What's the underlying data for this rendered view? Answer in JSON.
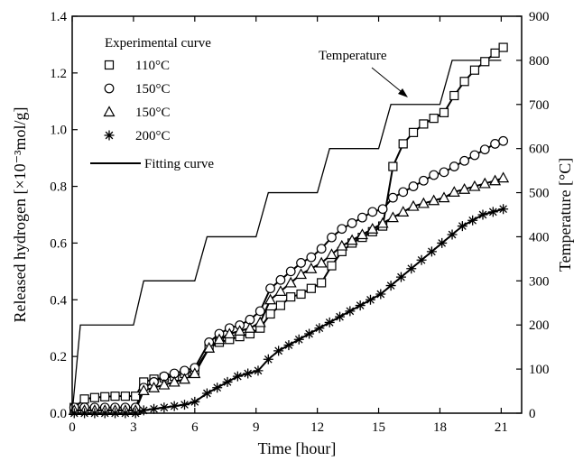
{
  "chart_data": {
    "type": "line",
    "xlabel": "Time [hour]",
    "ylabel": "Released hydrogen [×10⁻³mol/g]",
    "y2label": "Temperature [°C]",
    "xlim": [
      0,
      22
    ],
    "ylim": [
      0,
      1.4
    ],
    "y2lim": [
      0,
      900
    ],
    "xticks": [
      "0",
      "3",
      "6",
      "9",
      "12",
      "15",
      "18",
      "21"
    ],
    "yticks": [
      "0.0",
      "0.2",
      "0.4",
      "0.6",
      "0.8",
      "1.0",
      "1.2",
      "1.4"
    ],
    "y2ticks": [
      "0",
      "100",
      "200",
      "300",
      "400",
      "500",
      "600",
      "700",
      "800",
      "900"
    ],
    "grid": false,
    "legend": {
      "position": "top-left",
      "title": "Experimental curve",
      "fit_label": "Fitting curve"
    },
    "annotation": {
      "text": "Temperature"
    },
    "series": [
      {
        "name": "110°C",
        "marker": "square",
        "points": [
          [
            0.1,
            0.02
          ],
          [
            0.6,
            0.05
          ],
          [
            1.1,
            0.055
          ],
          [
            1.6,
            0.058
          ],
          [
            2.1,
            0.06
          ],
          [
            2.6,
            0.06
          ],
          [
            3.1,
            0.06
          ],
          [
            3.5,
            0.11
          ],
          [
            4.0,
            0.12
          ],
          [
            4.5,
            0.125
          ],
          [
            5.0,
            0.13
          ],
          [
            5.5,
            0.14
          ],
          [
            6.0,
            0.15
          ],
          [
            6.7,
            0.23
          ],
          [
            7.2,
            0.25
          ],
          [
            7.7,
            0.26
          ],
          [
            8.2,
            0.27
          ],
          [
            8.7,
            0.28
          ],
          [
            9.2,
            0.3
          ],
          [
            9.7,
            0.35
          ],
          [
            10.2,
            0.38
          ],
          [
            10.7,
            0.41
          ],
          [
            11.2,
            0.42
          ],
          [
            11.7,
            0.44
          ],
          [
            12.2,
            0.46
          ],
          [
            12.7,
            0.52
          ],
          [
            13.2,
            0.57
          ],
          [
            13.7,
            0.6
          ],
          [
            14.2,
            0.62
          ],
          [
            14.7,
            0.64
          ],
          [
            15.2,
            0.66
          ],
          [
            15.7,
            0.87
          ],
          [
            16.2,
            0.95
          ],
          [
            16.7,
            0.99
          ],
          [
            17.2,
            1.02
          ],
          [
            17.7,
            1.04
          ],
          [
            18.2,
            1.06
          ],
          [
            18.7,
            1.12
          ],
          [
            19.2,
            1.17
          ],
          [
            19.7,
            1.21
          ],
          [
            20.2,
            1.24
          ],
          [
            20.7,
            1.27
          ],
          [
            21.1,
            1.29
          ]
        ]
      },
      {
        "name": "150°C",
        "marker": "circle",
        "points": [
          [
            0.1,
            0.02
          ],
          [
            0.6,
            0.02
          ],
          [
            1.1,
            0.02
          ],
          [
            1.6,
            0.02
          ],
          [
            2.1,
            0.02
          ],
          [
            2.6,
            0.02
          ],
          [
            3.1,
            0.02
          ],
          [
            3.5,
            0.09
          ],
          [
            4.0,
            0.11
          ],
          [
            4.5,
            0.13
          ],
          [
            5.0,
            0.14
          ],
          [
            5.5,
            0.15
          ],
          [
            6.0,
            0.16
          ],
          [
            6.7,
            0.25
          ],
          [
            7.2,
            0.28
          ],
          [
            7.7,
            0.3
          ],
          [
            8.2,
            0.31
          ],
          [
            8.7,
            0.33
          ],
          [
            9.2,
            0.36
          ],
          [
            9.7,
            0.44
          ],
          [
            10.2,
            0.47
          ],
          [
            10.7,
            0.5
          ],
          [
            11.2,
            0.53
          ],
          [
            11.7,
            0.55
          ],
          [
            12.2,
            0.58
          ],
          [
            12.7,
            0.62
          ],
          [
            13.2,
            0.65
          ],
          [
            13.7,
            0.67
          ],
          [
            14.2,
            0.69
          ],
          [
            14.7,
            0.71
          ],
          [
            15.2,
            0.72
          ],
          [
            15.7,
            0.76
          ],
          [
            16.2,
            0.78
          ],
          [
            16.7,
            0.8
          ],
          [
            17.2,
            0.82
          ],
          [
            17.7,
            0.84
          ],
          [
            18.2,
            0.85
          ],
          [
            18.7,
            0.87
          ],
          [
            19.2,
            0.89
          ],
          [
            19.7,
            0.91
          ],
          [
            20.2,
            0.93
          ],
          [
            20.7,
            0.95
          ],
          [
            21.1,
            0.96
          ]
        ]
      },
      {
        "name": "150°C",
        "marker": "triangle",
        "points": [
          [
            0.1,
            0.01
          ],
          [
            0.6,
            0.01
          ],
          [
            1.1,
            0.01
          ],
          [
            1.6,
            0.01
          ],
          [
            2.1,
            0.01
          ],
          [
            2.6,
            0.01
          ],
          [
            3.1,
            0.01
          ],
          [
            3.5,
            0.08
          ],
          [
            4.0,
            0.09
          ],
          [
            4.5,
            0.1
          ],
          [
            5.0,
            0.11
          ],
          [
            5.5,
            0.12
          ],
          [
            6.0,
            0.14
          ],
          [
            6.7,
            0.23
          ],
          [
            7.2,
            0.26
          ],
          [
            7.7,
            0.28
          ],
          [
            8.2,
            0.29
          ],
          [
            8.7,
            0.3
          ],
          [
            9.2,
            0.32
          ],
          [
            9.7,
            0.4
          ],
          [
            10.2,
            0.43
          ],
          [
            10.7,
            0.46
          ],
          [
            11.2,
            0.49
          ],
          [
            11.7,
            0.51
          ],
          [
            12.2,
            0.53
          ],
          [
            12.7,
            0.56
          ],
          [
            13.2,
            0.59
          ],
          [
            13.7,
            0.61
          ],
          [
            14.2,
            0.63
          ],
          [
            14.7,
            0.65
          ],
          [
            15.2,
            0.67
          ],
          [
            15.7,
            0.69
          ],
          [
            16.2,
            0.71
          ],
          [
            16.7,
            0.73
          ],
          [
            17.2,
            0.74
          ],
          [
            17.7,
            0.75
          ],
          [
            18.2,
            0.76
          ],
          [
            18.7,
            0.78
          ],
          [
            19.2,
            0.79
          ],
          [
            19.7,
            0.8
          ],
          [
            20.2,
            0.81
          ],
          [
            20.7,
            0.82
          ],
          [
            21.1,
            0.83
          ]
        ]
      },
      {
        "name": "200°C",
        "marker": "star",
        "points": [
          [
            0.1,
            0.0
          ],
          [
            0.6,
            0.0
          ],
          [
            1.1,
            0.0
          ],
          [
            1.6,
            0.0
          ],
          [
            2.1,
            0.0
          ],
          [
            2.6,
            0.0
          ],
          [
            3.1,
            0.0
          ],
          [
            3.5,
            0.01
          ],
          [
            4.0,
            0.015
          ],
          [
            4.5,
            0.02
          ],
          [
            5.0,
            0.025
          ],
          [
            5.5,
            0.03
          ],
          [
            6.0,
            0.04
          ],
          [
            6.6,
            0.07
          ],
          [
            7.1,
            0.09
          ],
          [
            7.6,
            0.11
          ],
          [
            8.1,
            0.13
          ],
          [
            8.6,
            0.14
          ],
          [
            9.1,
            0.15
          ],
          [
            9.6,
            0.19
          ],
          [
            10.1,
            0.22
          ],
          [
            10.6,
            0.24
          ],
          [
            11.1,
            0.26
          ],
          [
            11.6,
            0.28
          ],
          [
            12.1,
            0.3
          ],
          [
            12.6,
            0.32
          ],
          [
            13.1,
            0.34
          ],
          [
            13.6,
            0.36
          ],
          [
            14.1,
            0.38
          ],
          [
            14.6,
            0.4
          ],
          [
            15.1,
            0.42
          ],
          [
            15.6,
            0.45
          ],
          [
            16.1,
            0.48
          ],
          [
            16.6,
            0.51
          ],
          [
            17.1,
            0.54
          ],
          [
            17.6,
            0.57
          ],
          [
            18.1,
            0.6
          ],
          [
            18.6,
            0.63
          ],
          [
            19.1,
            0.66
          ],
          [
            19.6,
            0.68
          ],
          [
            20.1,
            0.7
          ],
          [
            20.6,
            0.71
          ],
          [
            21.1,
            0.72
          ]
        ]
      }
    ],
    "temperature": {
      "name": "Temperature",
      "axis": "right",
      "points": [
        [
          0,
          0
        ],
        [
          0.4,
          200
        ],
        [
          3.0,
          200
        ],
        [
          3.5,
          300
        ],
        [
          6.0,
          300
        ],
        [
          6.6,
          400
        ],
        [
          9.0,
          400
        ],
        [
          9.6,
          500
        ],
        [
          12.0,
          500
        ],
        [
          12.6,
          600
        ],
        [
          15.0,
          600
        ],
        [
          15.6,
          700
        ],
        [
          18.0,
          700
        ],
        [
          18.6,
          800
        ],
        [
          21.0,
          800
        ]
      ]
    }
  }
}
